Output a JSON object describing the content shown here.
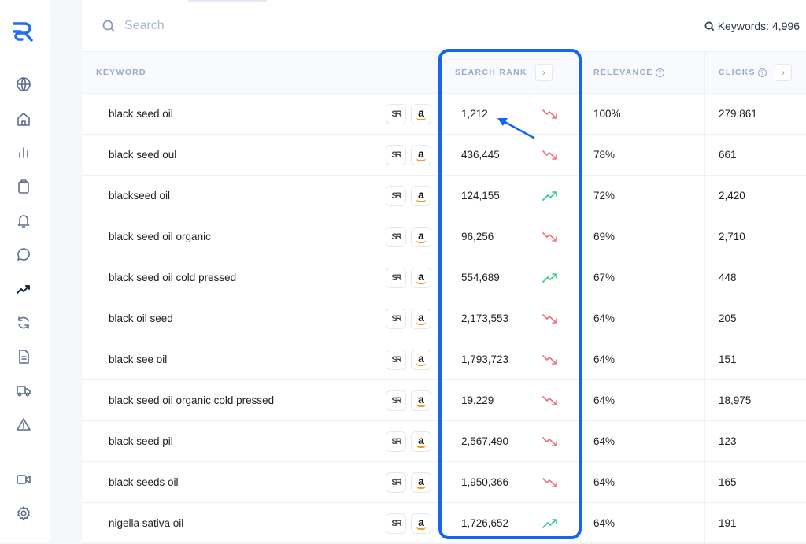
{
  "sidebar": {
    "logo": "SR",
    "items": [
      "globe-icon",
      "home-icon",
      "bar-chart-icon",
      "clipboard-icon",
      "bell-icon",
      "chat-icon",
      "trending-up-icon",
      "refresh-icon",
      "document-icon",
      "truck-icon",
      "warning-icon"
    ],
    "bottom_items": [
      "video-icon",
      "gear-icon"
    ],
    "active": "trending-up-icon"
  },
  "search": {
    "placeholder": "Search"
  },
  "keyword_count": "Keywords: 4,996",
  "columns": {
    "keyword": "KEYWORD",
    "search_rank": "SEARCH RANK",
    "relevance": "RELEVANCE",
    "clicks": "CLICKS"
  },
  "colors": {
    "accent": "#1565f2",
    "down": "#ef6b7f",
    "up": "#2ecb88"
  },
  "rows": [
    {
      "keyword": "black seed oil",
      "rank": "1,212",
      "trend": "down",
      "relevance": "100%",
      "clicks": "279,861"
    },
    {
      "keyword": "black seed oul",
      "rank": "436,445",
      "trend": "down",
      "relevance": "78%",
      "clicks": "661"
    },
    {
      "keyword": "blackseed oil",
      "rank": "124,155",
      "trend": "up",
      "relevance": "72%",
      "clicks": "2,420"
    },
    {
      "keyword": "black seed oil organic",
      "rank": "96,256",
      "trend": "down",
      "relevance": "69%",
      "clicks": "2,710"
    },
    {
      "keyword": "black seed oil cold pressed",
      "rank": "554,689",
      "trend": "up",
      "relevance": "67%",
      "clicks": "448"
    },
    {
      "keyword": "black oil seed",
      "rank": "2,173,553",
      "trend": "down",
      "relevance": "64%",
      "clicks": "205"
    },
    {
      "keyword": "black see oil",
      "rank": "1,793,723",
      "trend": "down",
      "relevance": "64%",
      "clicks": "151"
    },
    {
      "keyword": "black seed oil organic cold pressed",
      "rank": "19,229",
      "trend": "down",
      "relevance": "64%",
      "clicks": "18,975"
    },
    {
      "keyword": "black seed pil",
      "rank": "2,567,490",
      "trend": "down",
      "relevance": "64%",
      "clicks": "123"
    },
    {
      "keyword": "black seeds oil",
      "rank": "1,950,366",
      "trend": "down",
      "relevance": "64%",
      "clicks": "165"
    },
    {
      "keyword": "nigella sativa oil",
      "rank": "1,726,652",
      "trend": "up",
      "relevance": "64%",
      "clicks": "191"
    }
  ]
}
